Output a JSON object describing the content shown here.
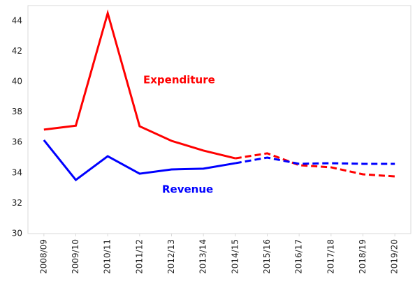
{
  "chart_data": {
    "type": "line",
    "categories": [
      "2008/09",
      "2009/10",
      "2010/11",
      "2011/12",
      "2012/13",
      "2013/14",
      "2014/15",
      "2015/16",
      "2016/17",
      "2017/18",
      "2018/19",
      "2019/20"
    ],
    "series": [
      {
        "name": "Expenditure",
        "color": "#ff0000",
        "dashed_from": "2014/15",
        "values": [
          36.84,
          37.1,
          44.5,
          37.06,
          36.1,
          35.46,
          34.95,
          35.28,
          34.5,
          34.36,
          33.9,
          33.76
        ]
      },
      {
        "name": "Revenue",
        "color": "#0000ff",
        "dashed_from": "2014/15",
        "values": [
          36.15,
          33.53,
          35.09,
          33.94,
          34.22,
          34.27,
          34.63,
          35.0,
          34.59,
          34.63,
          34.59,
          34.59
        ]
      }
    ],
    "ylim": [
      30,
      45
    ],
    "yticks": [
      30,
      32,
      34,
      36,
      38,
      40,
      42,
      44
    ],
    "grid": false
  }
}
